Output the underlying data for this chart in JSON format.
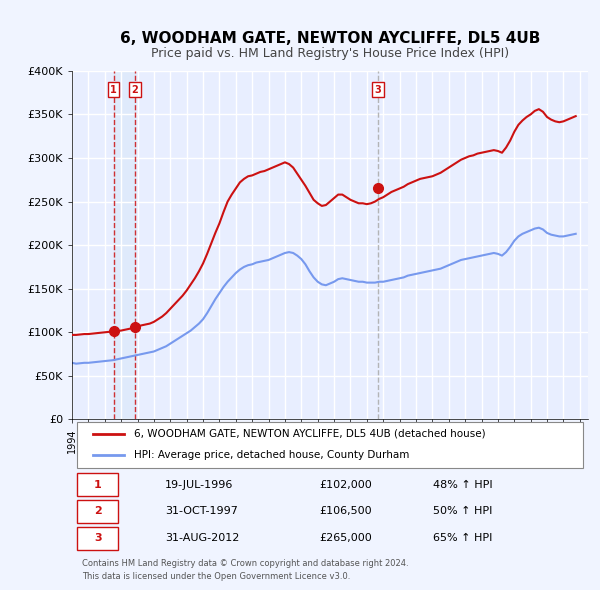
{
  "title": "6, WOODHAM GATE, NEWTON AYCLIFFE, DL5 4UB",
  "subtitle": "Price paid vs. HM Land Registry's House Price Index (HPI)",
  "bg_color": "#f0f4ff",
  "plot_bg_color": "#e8eeff",
  "grid_color": "#ffffff",
  "hpi_line_color": "#7799ee",
  "price_line_color": "#cc1111",
  "sale_dot_color": "#cc1111",
  "ylim": [
    0,
    400000
  ],
  "yticks": [
    0,
    50000,
    100000,
    150000,
    200000,
    250000,
    300000,
    350000,
    400000
  ],
  "ytick_labels": [
    "£0",
    "£50K",
    "£100K",
    "£150K",
    "£200K",
    "£250K",
    "£300K",
    "£350K",
    "£400K"
  ],
  "xlim_start": 1994.0,
  "xlim_end": 2025.5,
  "sales": [
    {
      "num": 1,
      "date_label": "19-JUL-1996",
      "price": 102000,
      "pct": "48%",
      "x": 1996.54,
      "vline_x": 1996.54
    },
    {
      "num": 2,
      "date_label": "31-OCT-1997",
      "price": 106500,
      "pct": "50%",
      "x": 1997.83,
      "vline_x": 1997.83
    },
    {
      "num": 3,
      "date_label": "31-AUG-2012",
      "price": 265000,
      "pct": "65%",
      "x": 2012.67,
      "vline_x": 2012.67
    }
  ],
  "legend_line1": "6, WOODHAM GATE, NEWTON AYCLIFFE, DL5 4UB (detached house)",
  "legend_line2": "HPI: Average price, detached house, County Durham",
  "footer1": "Contains HM Land Registry data © Crown copyright and database right 2024.",
  "footer2": "This data is licensed under the Open Government Licence v3.0.",
  "hpi_data_x": [
    1994.0,
    1994.25,
    1994.5,
    1994.75,
    1995.0,
    1995.25,
    1995.5,
    1995.75,
    1996.0,
    1996.25,
    1996.5,
    1996.75,
    1997.0,
    1997.25,
    1997.5,
    1997.75,
    1998.0,
    1998.25,
    1998.5,
    1998.75,
    1999.0,
    1999.25,
    1999.5,
    1999.75,
    2000.0,
    2000.25,
    2000.5,
    2000.75,
    2001.0,
    2001.25,
    2001.5,
    2001.75,
    2002.0,
    2002.25,
    2002.5,
    2002.75,
    2003.0,
    2003.25,
    2003.5,
    2003.75,
    2004.0,
    2004.25,
    2004.5,
    2004.75,
    2005.0,
    2005.25,
    2005.5,
    2005.75,
    2006.0,
    2006.25,
    2006.5,
    2006.75,
    2007.0,
    2007.25,
    2007.5,
    2007.75,
    2008.0,
    2008.25,
    2008.5,
    2008.75,
    2009.0,
    2009.25,
    2009.5,
    2009.75,
    2010.0,
    2010.25,
    2010.5,
    2010.75,
    2011.0,
    2011.25,
    2011.5,
    2011.75,
    2012.0,
    2012.25,
    2012.5,
    2012.75,
    2013.0,
    2013.25,
    2013.5,
    2013.75,
    2014.0,
    2014.25,
    2014.5,
    2014.75,
    2015.0,
    2015.25,
    2015.5,
    2015.75,
    2016.0,
    2016.25,
    2016.5,
    2016.75,
    2017.0,
    2017.25,
    2017.5,
    2017.75,
    2018.0,
    2018.25,
    2018.5,
    2018.75,
    2019.0,
    2019.25,
    2019.5,
    2019.75,
    2020.0,
    2020.25,
    2020.5,
    2020.75,
    2021.0,
    2021.25,
    2021.5,
    2021.75,
    2022.0,
    2022.25,
    2022.5,
    2022.75,
    2023.0,
    2023.25,
    2023.5,
    2023.75,
    2024.0,
    2024.25,
    2024.5,
    2024.75
  ],
  "hpi_data_y": [
    65000,
    64000,
    64500,
    65000,
    65000,
    65500,
    66000,
    66500,
    67000,
    67500,
    68000,
    69000,
    70000,
    71000,
    72000,
    73000,
    74000,
    75000,
    76000,
    77000,
    78000,
    80000,
    82000,
    84000,
    87000,
    90000,
    93000,
    96000,
    99000,
    102000,
    106000,
    110000,
    115000,
    122000,
    130000,
    138000,
    145000,
    152000,
    158000,
    163000,
    168000,
    172000,
    175000,
    177000,
    178000,
    180000,
    181000,
    182000,
    183000,
    185000,
    187000,
    189000,
    191000,
    192000,
    191000,
    188000,
    184000,
    178000,
    170000,
    163000,
    158000,
    155000,
    154000,
    156000,
    158000,
    161000,
    162000,
    161000,
    160000,
    159000,
    158000,
    158000,
    157000,
    157000,
    157000,
    158000,
    158000,
    159000,
    160000,
    161000,
    162000,
    163000,
    165000,
    166000,
    167000,
    168000,
    169000,
    170000,
    171000,
    172000,
    173000,
    175000,
    177000,
    179000,
    181000,
    183000,
    184000,
    185000,
    186000,
    187000,
    188000,
    189000,
    190000,
    191000,
    190000,
    188000,
    192000,
    198000,
    205000,
    210000,
    213000,
    215000,
    217000,
    219000,
    220000,
    218000,
    214000,
    212000,
    211000,
    210000,
    210000,
    211000,
    212000,
    213000
  ],
  "price_data_x": [
    1994.0,
    1994.25,
    1994.5,
    1994.75,
    1995.0,
    1995.25,
    1995.5,
    1995.75,
    1996.0,
    1996.25,
    1996.5,
    1996.75,
    1997.0,
    1997.25,
    1997.5,
    1997.75,
    1998.0,
    1998.25,
    1998.5,
    1998.75,
    1999.0,
    1999.25,
    1999.5,
    1999.75,
    2000.0,
    2000.25,
    2000.5,
    2000.75,
    2001.0,
    2001.25,
    2001.5,
    2001.75,
    2002.0,
    2002.25,
    2002.5,
    2002.75,
    2003.0,
    2003.25,
    2003.5,
    2003.75,
    2004.0,
    2004.25,
    2004.5,
    2004.75,
    2005.0,
    2005.25,
    2005.5,
    2005.75,
    2006.0,
    2006.25,
    2006.5,
    2006.75,
    2007.0,
    2007.25,
    2007.5,
    2007.75,
    2008.0,
    2008.25,
    2008.5,
    2008.75,
    2009.0,
    2009.25,
    2009.5,
    2009.75,
    2010.0,
    2010.25,
    2010.5,
    2010.75,
    2011.0,
    2011.25,
    2011.5,
    2011.75,
    2012.0,
    2012.25,
    2012.5,
    2012.75,
    2013.0,
    2013.25,
    2013.5,
    2013.75,
    2014.0,
    2014.25,
    2014.5,
    2014.75,
    2015.0,
    2015.25,
    2015.5,
    2015.75,
    2016.0,
    2016.25,
    2016.5,
    2016.75,
    2017.0,
    2017.25,
    2017.5,
    2017.75,
    2018.0,
    2018.25,
    2018.5,
    2018.75,
    2019.0,
    2019.25,
    2019.5,
    2019.75,
    2020.0,
    2020.25,
    2020.5,
    2020.75,
    2021.0,
    2021.25,
    2021.5,
    2021.75,
    2022.0,
    2022.25,
    2022.5,
    2022.75,
    2023.0,
    2023.25,
    2023.5,
    2023.75,
    2024.0,
    2024.25,
    2024.5,
    2024.75
  ],
  "price_data_y": [
    97000,
    97000,
    97500,
    98000,
    98000,
    98500,
    99000,
    99500,
    100000,
    100500,
    101000,
    101500,
    102000,
    103000,
    104000,
    105000,
    106500,
    108000,
    109000,
    110000,
    112000,
    115000,
    118000,
    122000,
    127000,
    132000,
    137000,
    142000,
    148000,
    155000,
    162000,
    170000,
    179000,
    190000,
    202000,
    214000,
    225000,
    238000,
    250000,
    258000,
    265000,
    272000,
    276000,
    279000,
    280000,
    282000,
    284000,
    285000,
    287000,
    289000,
    291000,
    293000,
    295000,
    293000,
    289000,
    282000,
    275000,
    268000,
    260000,
    252000,
    248000,
    245000,
    246000,
    250000,
    254000,
    258000,
    258000,
    255000,
    252000,
    250000,
    248000,
    248000,
    247000,
    248000,
    250000,
    253000,
    255000,
    258000,
    261000,
    263000,
    265000,
    267000,
    270000,
    272000,
    274000,
    276000,
    277000,
    278000,
    279000,
    281000,
    283000,
    286000,
    289000,
    292000,
    295000,
    298000,
    300000,
    302000,
    303000,
    305000,
    306000,
    307000,
    308000,
    309000,
    308000,
    306000,
    312000,
    320000,
    330000,
    338000,
    343000,
    347000,
    350000,
    354000,
    356000,
    353000,
    347000,
    344000,
    342000,
    341000,
    342000,
    344000,
    346000,
    348000
  ]
}
